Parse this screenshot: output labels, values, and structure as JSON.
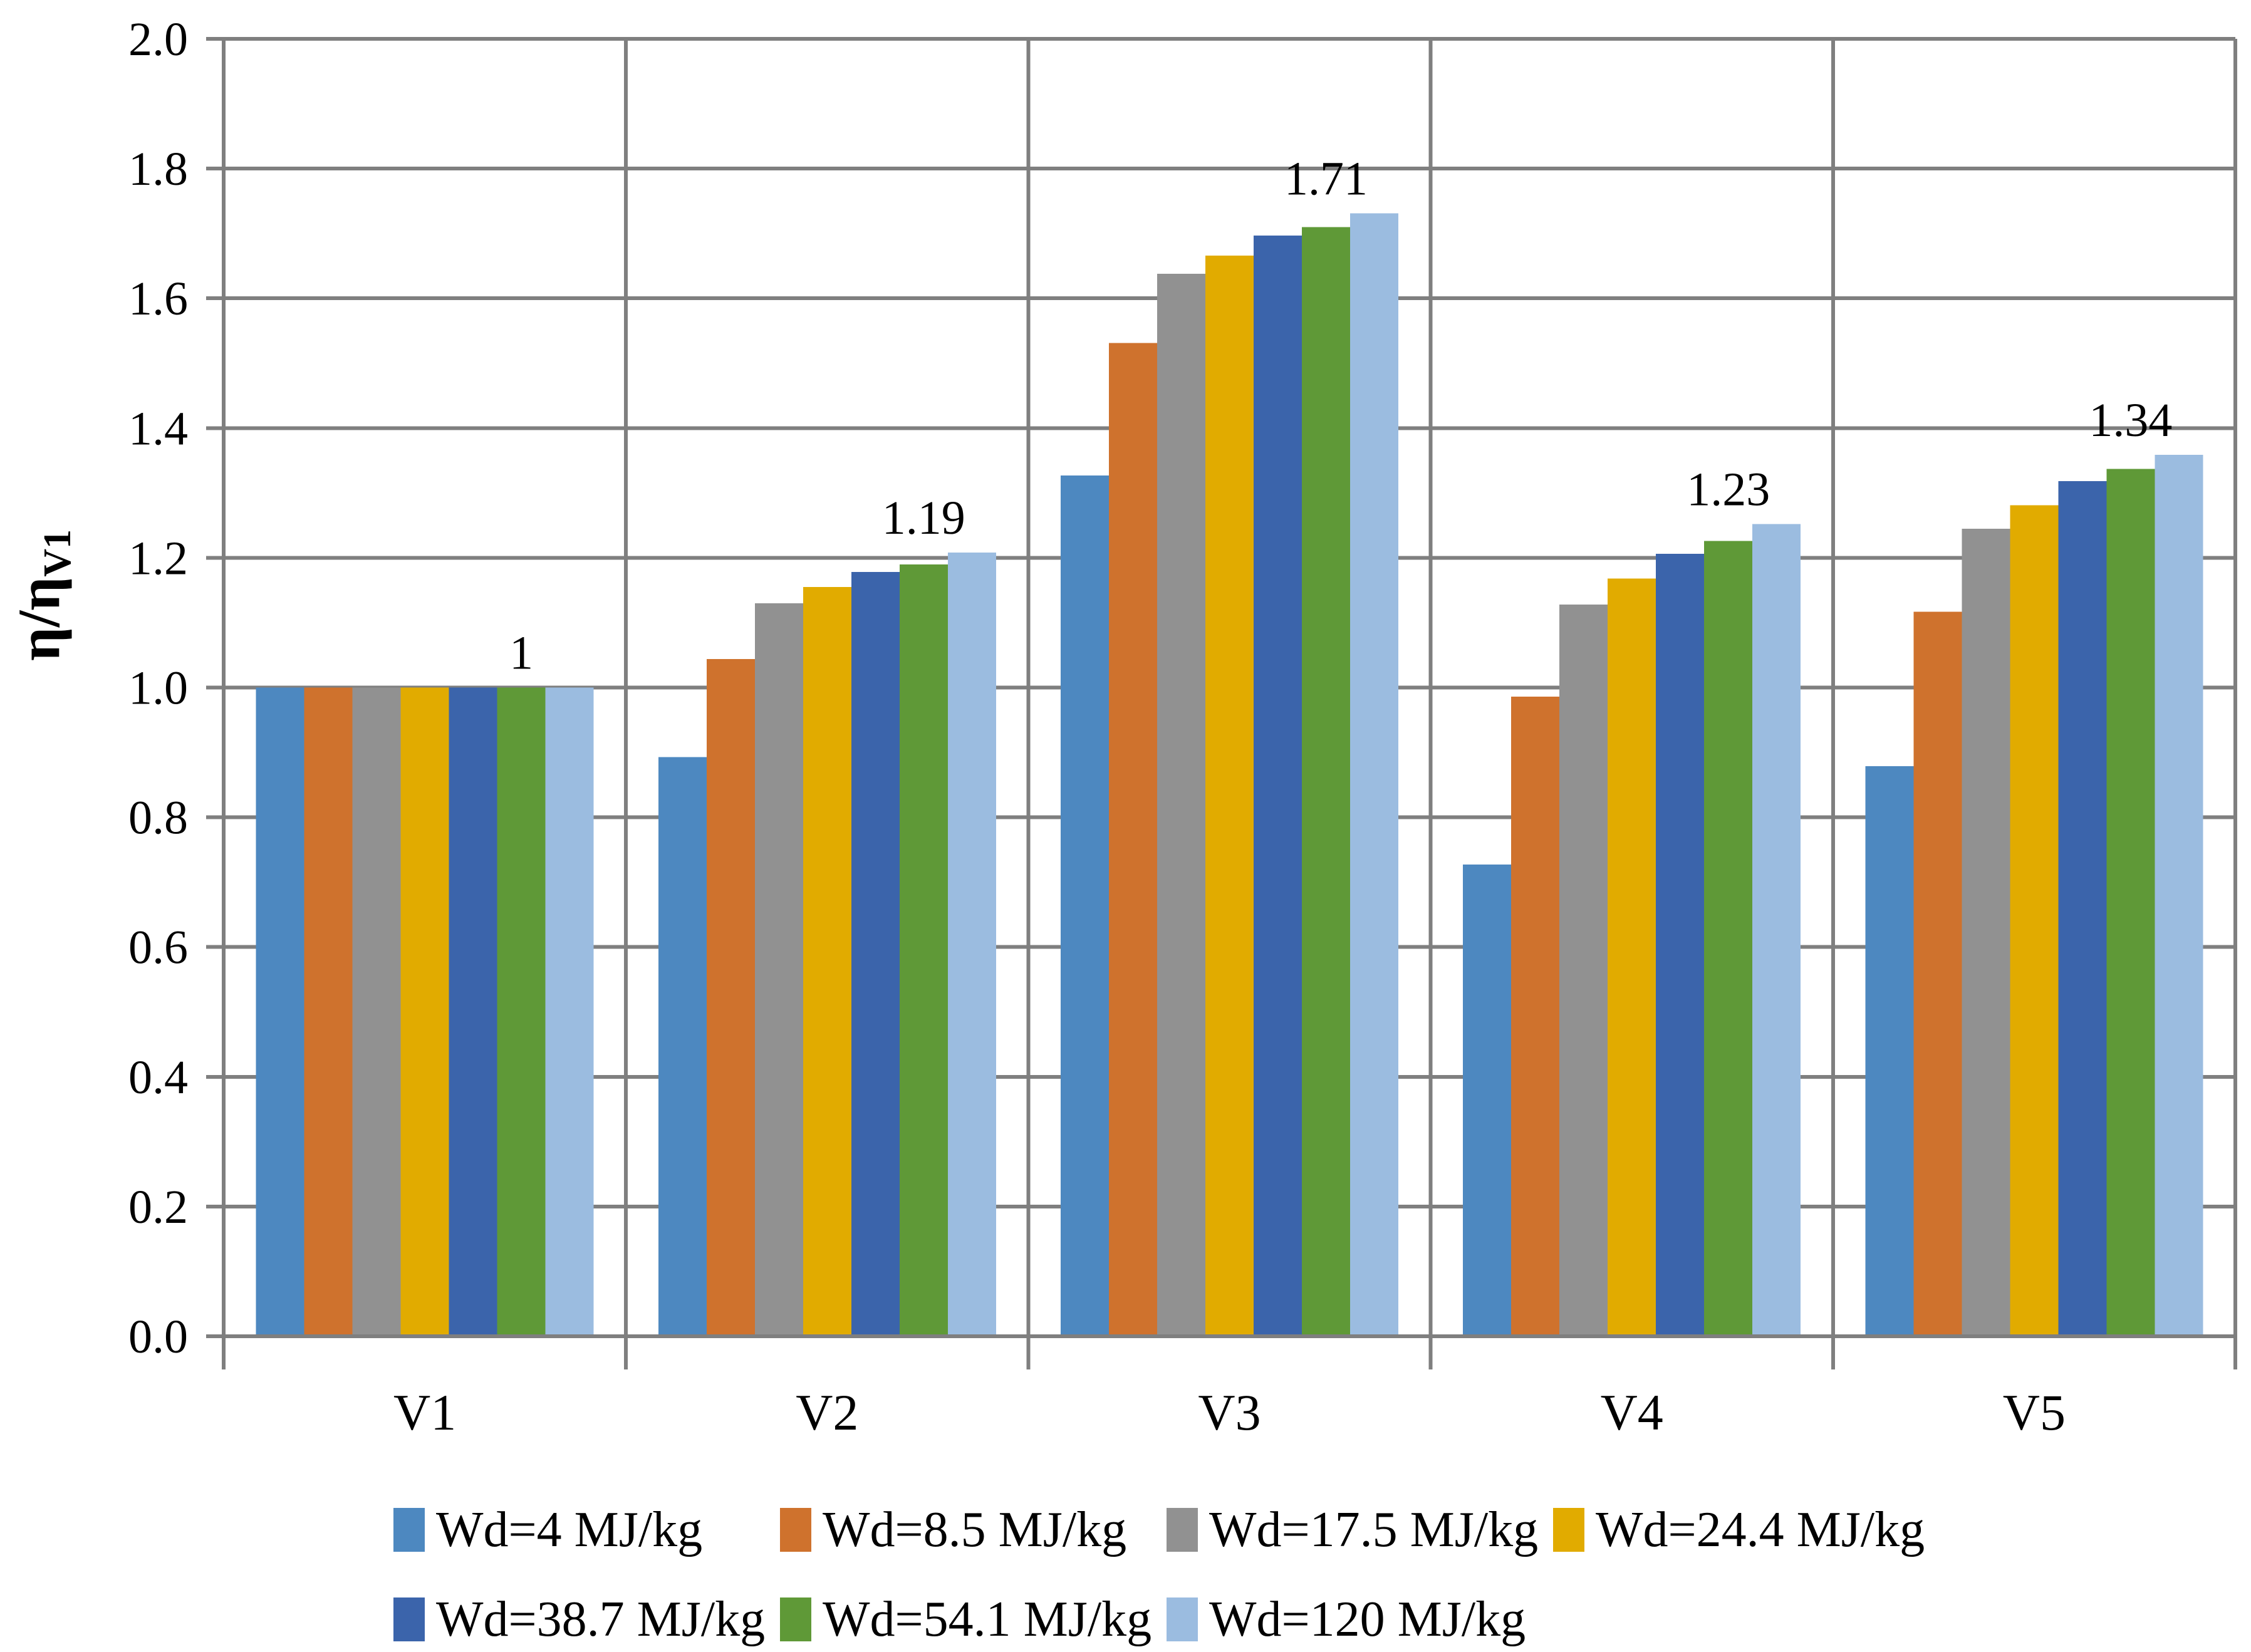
{
  "figure": {
    "background": "#FFFFFF",
    "grid_color": "#7F7F7F",
    "text_color": "#000000"
  },
  "chart_data": {
    "type": "bar",
    "title": "",
    "xlabel": "",
    "ylabel": "η/η_V1",
    "ylabel_main": "η/η",
    "ylabel_sub": "V1",
    "categories": [
      "V1",
      "V2",
      "V3",
      "V4",
      "V5"
    ],
    "series": [
      {
        "name": "Wd=4 MJ/kg",
        "color": "#4D88C0",
        "values": [
          1.0,
          0.893,
          1.327,
          0.727,
          0.879
        ]
      },
      {
        "name": "Wd=8.5 MJ/kg",
        "color": "#CF722D",
        "values": [
          1.0,
          1.044,
          1.531,
          0.986,
          1.117
        ]
      },
      {
        "name": "Wd=17.5 MJ/kg",
        "color": "#919191",
        "values": [
          1.0,
          1.13,
          1.638,
          1.128,
          1.245
        ]
      },
      {
        "name": "Wd=24.4 MJ/kg",
        "color": "#E1AB00",
        "values": [
          1.0,
          1.155,
          1.666,
          1.168,
          1.281
        ]
      },
      {
        "name": "Wd=38.7 MJ/kg",
        "color": "#3B64AB",
        "values": [
          1.0,
          1.178,
          1.697,
          1.206,
          1.318
        ]
      },
      {
        "name": "Wd=54.1 MJ/kg",
        "color": "#5F9937",
        "values": [
          1.0,
          1.19,
          1.71,
          1.226,
          1.337
        ]
      },
      {
        "name": "Wd=120 MJ/kg",
        "color": "#9BBCE0",
        "values": [
          1.0,
          1.208,
          1.731,
          1.252,
          1.359
        ]
      }
    ],
    "group_data_labels": [
      "1",
      "1.19",
      "1.71",
      "1.23",
      "1.34"
    ],
    "ylim": [
      0.0,
      2.0
    ],
    "ytick_step": 0.2,
    "ytick_labels": [
      "0.0",
      "0.2",
      "0.4",
      "0.6",
      "0.8",
      "1.0",
      "1.2",
      "1.4",
      "1.6",
      "1.8",
      "2.0"
    ],
    "grid": true,
    "legend_position": "bottom",
    "legend_rows": [
      [
        "Wd=4 MJ/kg",
        "Wd=8.5 MJ/kg",
        "Wd=17.5 MJ/kg",
        "Wd=24.4 MJ/kg"
      ],
      [
        "Wd=38.7 MJ/kg",
        "Wd=54.1 MJ/kg",
        "Wd=120 MJ/kg"
      ]
    ]
  }
}
